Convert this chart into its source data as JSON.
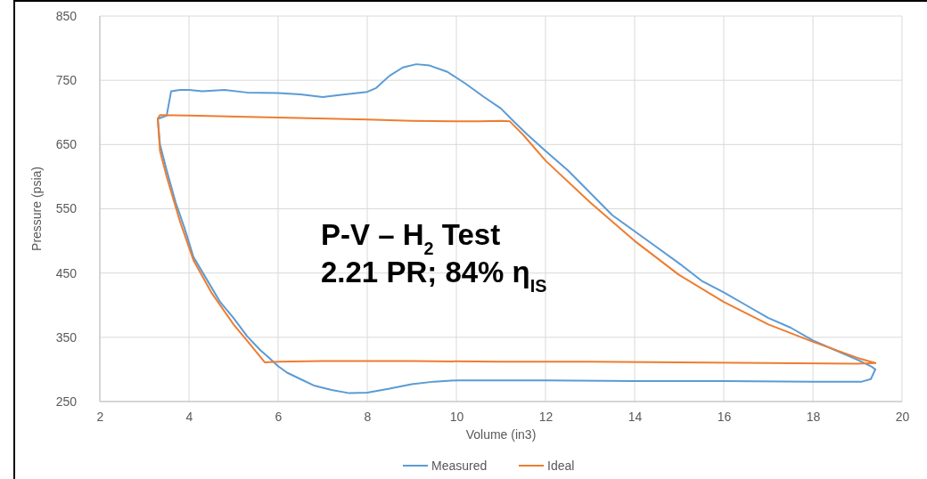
{
  "chart_data": {
    "type": "line",
    "xlabel": "Volume (in3)",
    "ylabel": "Pressure (psia)",
    "xlim": [
      2,
      20
    ],
    "xticks": [
      2,
      4,
      6,
      8,
      10,
      12,
      14,
      16,
      18,
      20
    ],
    "ylim": [
      250,
      850
    ],
    "yticks": [
      250,
      350,
      450,
      550,
      650,
      750,
      850
    ],
    "grid": true,
    "legend": "bottom",
    "line_style": "solid",
    "annotations": [
      "P-V – H$_{2}$ Test",
      "2.21 PR; 84% η$_{IS}$"
    ],
    "series": [
      {
        "name": "Measured",
        "color": "#5b9bd5",
        "x": [
          3.3,
          3.5,
          3.6,
          3.8,
          4.0,
          4.3,
          4.8,
          5.3,
          6,
          6.5,
          7,
          7.5,
          8,
          8.2,
          8.5,
          8.8,
          9.1,
          9.4,
          9.8,
          10.2,
          10.6,
          11,
          11.3,
          11.6,
          12,
          12.5,
          13,
          13.5,
          14,
          14.5,
          15,
          15.5,
          16,
          16.5,
          17,
          17.5,
          18,
          18.5,
          19,
          19.3,
          19.4
        ],
        "values": [
          690,
          695,
          733,
          735,
          735,
          733,
          735,
          731,
          730,
          728,
          724,
          728,
          732,
          738,
          757,
          770,
          775,
          773,
          763,
          745,
          725,
          706,
          685,
          665,
          640,
          610,
          575,
          540,
          515,
          490,
          465,
          438,
          420,
          400,
          380,
          365,
          345,
          330,
          315,
          305,
          300
        ]
      },
      {
        "color": "#5b9bd5",
        "x": [
          19.4,
          19.3,
          19.1,
          18,
          16,
          14,
          12,
          11,
          10,
          9.5,
          9,
          8.5,
          8,
          7.6,
          7.2,
          6.8,
          6.5,
          6.2,
          6,
          5.8,
          5.6,
          5.3,
          5,
          4.7,
          4.4,
          4.1,
          3.9,
          3.7,
          3.5,
          3.35,
          3.3
        ],
        "values": [
          300,
          285,
          281,
          281,
          282,
          282,
          283,
          283,
          283,
          281,
          277,
          270,
          264,
          263,
          268,
          275,
          285,
          295,
          305,
          318,
          330,
          352,
          380,
          405,
          440,
          475,
          520,
          560,
          610,
          650,
          690
        ]
      },
      {
        "name": "Ideal",
        "color": "#ed7d31",
        "x": [
          3.3,
          3.35,
          4,
          6,
          8,
          9,
          10,
          10.5,
          11,
          11.2,
          11.5,
          12,
          13,
          14,
          15,
          16,
          17,
          18,
          19,
          19.4
        ],
        "values": [
          690,
          696,
          695,
          692,
          689,
          687,
          686,
          686,
          687,
          686,
          665,
          625,
          560,
          500,
          447,
          405,
          370,
          343,
          318,
          310
        ]
      },
      {
        "color": "#ed7d31",
        "x": [
          19.4,
          19,
          17,
          15,
          13,
          11,
          9,
          7,
          6,
          5.7,
          5.3,
          5,
          4.5,
          4.1,
          3.8,
          3.5,
          3.35,
          3.3
        ],
        "values": [
          310,
          309,
          310,
          311,
          312,
          312,
          313,
          313,
          312,
          311,
          345,
          370,
          420,
          470,
          530,
          600,
          640,
          690
        ]
      }
    ]
  }
}
